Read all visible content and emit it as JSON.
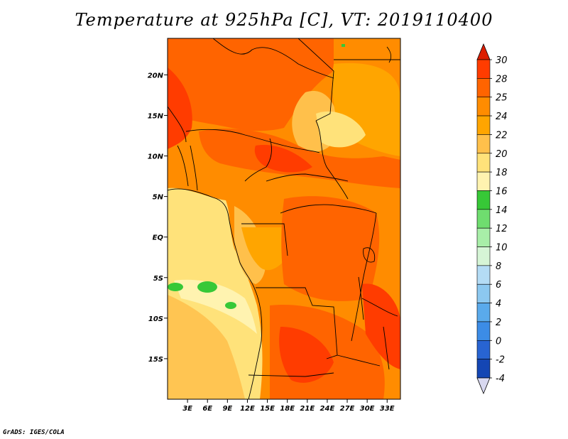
{
  "title": "Temperature at 925hPa [C], VT: 2019110400",
  "credit": "GrADS: IGES/COLA",
  "map": {
    "lon_range": [
      0,
      35
    ],
    "lat_range": [
      -20,
      24.5
    ],
    "lat_ticks": [
      {
        "value": 20,
        "label": "20N"
      },
      {
        "value": 15,
        "label": "15N"
      },
      {
        "value": 10,
        "label": "10N"
      },
      {
        "value": 5,
        "label": "5N"
      },
      {
        "value": 0,
        "label": "EQ"
      },
      {
        "value": -5,
        "label": "5S"
      },
      {
        "value": -10,
        "label": "10S"
      },
      {
        "value": -15,
        "label": "15S"
      }
    ],
    "lon_ticks": [
      {
        "value": 3,
        "label": "3E"
      },
      {
        "value": 6,
        "label": "6E"
      },
      {
        "value": 9,
        "label": "9E"
      },
      {
        "value": 12,
        "label": "12E"
      },
      {
        "value": 15,
        "label": "15E"
      },
      {
        "value": 18,
        "label": "18E"
      },
      {
        "value": 21,
        "label": "21E"
      },
      {
        "value": 24,
        "label": "24E"
      },
      {
        "value": 27,
        "label": "27E"
      },
      {
        "value": 30,
        "label": "30E"
      },
      {
        "value": 33,
        "label": "33E"
      }
    ]
  },
  "colorbar": {
    "levels": [
      {
        "label": "30",
        "color": "#ff3c00"
      },
      {
        "label": "28",
        "color": "#ff6400"
      },
      {
        "label": "25",
        "color": "#ff8c00"
      },
      {
        "label": "24",
        "color": "#ffa500"
      },
      {
        "label": "22",
        "color": "#ffc04b"
      },
      {
        "label": "20",
        "color": "#ffe27a"
      },
      {
        "label": "18",
        "color": "#fff3b0"
      },
      {
        "label": "16",
        "color": "#37c837"
      },
      {
        "label": "14",
        "color": "#6fdd6f"
      },
      {
        "label": "12",
        "color": "#a8eea8"
      },
      {
        "label": "10",
        "color": "#d6f5d6"
      },
      {
        "label": "8",
        "color": "#b4dcf5"
      },
      {
        "label": "6",
        "color": "#8cc8f0"
      },
      {
        "label": "4",
        "color": "#5aaaeb"
      },
      {
        "label": "2",
        "color": "#3c8ce6"
      },
      {
        "label": "0",
        "color": "#2864d2"
      },
      {
        "label": "-2",
        "color": "#1446b4"
      },
      {
        "label": "-4",
        "color": "#0a2896"
      }
    ],
    "top_color": "#dc1e00",
    "bottom_color": "#d8d8f0"
  },
  "colors": {
    "ocean_north": "#ffe27a",
    "ocean_south": "#ffc04b",
    "land_base": "#ff8c00",
    "hot": "#ff6400",
    "very_hot": "#ff3c00",
    "warm": "#ffa500",
    "cool_band": "#fff3b0",
    "green": "#37c837",
    "border": "#000000"
  }
}
